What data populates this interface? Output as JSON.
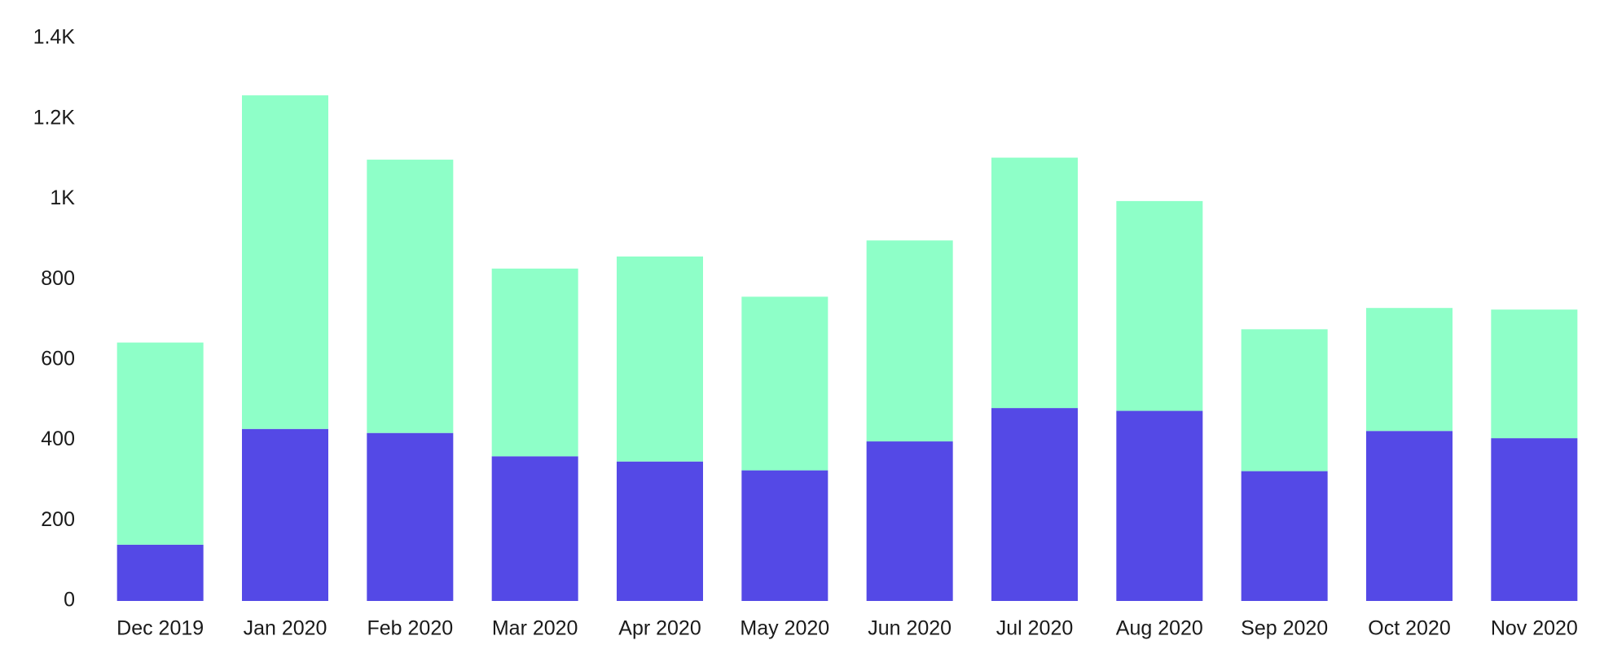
{
  "chart_data": {
    "type": "bar",
    "stacked": true,
    "categories": [
      "Dec 2019",
      "Jan 2020",
      "Feb 2020",
      "Mar 2020",
      "Apr 2020",
      "May 2020",
      "Jun 2020",
      "Jul 2020",
      "Aug 2020",
      "Sep 2020",
      "Oct 2020",
      "Nov 2020"
    ],
    "series": [
      {
        "values": [
          140,
          428,
          418,
          360,
          347,
          325,
          397,
          480,
          473,
          323,
          423,
          405
        ],
        "color": "#5449e6"
      },
      {
        "values": [
          503,
          830,
          680,
          467,
          510,
          432,
          500,
          623,
          522,
          353,
          306,
          320
        ],
        "color": "#8effc8"
      }
    ],
    "ylim": [
      0,
      1400
    ],
    "yticks": [
      0,
      200,
      400,
      600,
      800,
      1000,
      1200,
      1400
    ],
    "ytick_labels": [
      "0",
      "200",
      "400",
      "600",
      "800",
      "1K",
      "1.2K",
      "1.4K"
    ],
    "title": "",
    "xlabel": "",
    "ylabel": "",
    "grid": false,
    "legend": false
  }
}
